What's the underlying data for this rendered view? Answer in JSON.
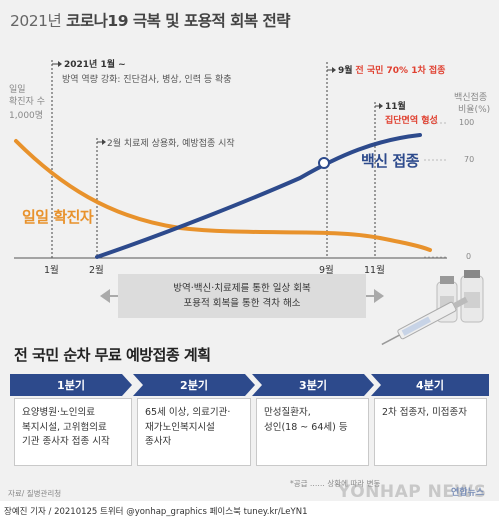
{
  "header": {
    "title_year": "2021년",
    "title_rest": "코로나19 극복 및 포용적 회복 전략"
  },
  "chart": {
    "left_axis_label_1": "일일",
    "left_axis_label_2": "확진자 수",
    "left_axis_label_3": "1,000명",
    "right_axis_label_1": "백신접종",
    "right_axis_label_2": "비율(%)",
    "right_ticks": [
      "100",
      "70",
      "0"
    ],
    "months": [
      "1월",
      "2월",
      "9월",
      "11월"
    ],
    "annotations": {
      "jan_title": "2021년 1월 ~",
      "jan_detail": "방역 역량 강화: 진단검사, 병상, 인력 등 확충",
      "feb": "2월 치료제 상용화, 예방접종 시작",
      "sep_month": "9월",
      "sep_red": "전 국민 70% 1차 접종",
      "nov_month": "11월",
      "nov_red": "집단면역 형성"
    },
    "series_labels": {
      "cases": "일일 확진자",
      "vaccine": "백신 접종"
    },
    "colors": {
      "cases": "#e8922c",
      "vaccine": "#2d4a8c",
      "highlight": "#e04030"
    },
    "gray_box_line1": "방역·백신·치료제를 통한 일상 회복",
    "gray_box_line2": "포용적 회복을 통한 격차 해소"
  },
  "plan": {
    "title": "전 국민 순차 무료 예방접종 계획",
    "quarters": [
      {
        "label": "1분기",
        "text": [
          "요양병원·노인의료",
          "복지시설, 고위험의료",
          "기관 종사자 접종 시작"
        ]
      },
      {
        "label": "2분기",
        "text": [
          "65세 이상, 의료기관·",
          "재가노인복지시설",
          "종사자"
        ]
      },
      {
        "label": "3분기",
        "text": [
          "만성질환자,",
          "성인(18 ~ 64세) 등"
        ]
      },
      {
        "label": "4분기",
        "text": [
          "2차 접종자, 미접종자"
        ]
      }
    ],
    "quarter_color": "#2d4a8c",
    "note": "*공급 …… 상황에 따라 변동",
    "source": "자료/ 질병관리청"
  },
  "footer": {
    "text": "장예진 기자 / 20210125 트위터 @yonhap_graphics  페이스북 tuney.kr/LeYN1"
  },
  "watermark": "YONHAP NEWS",
  "corner_logo": "연합뉴스"
}
